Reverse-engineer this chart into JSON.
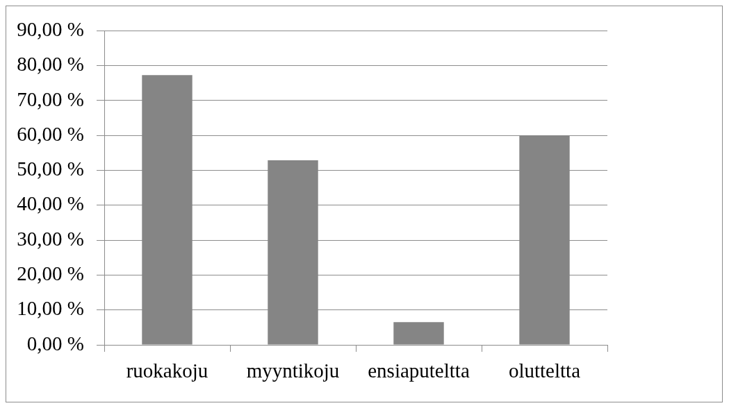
{
  "chart_data": {
    "type": "bar",
    "categories": [
      "ruokakoju",
      "myyntikoju",
      "ensiaputeltta",
      "olutteltta"
    ],
    "values": [
      77.3,
      52.9,
      6.5,
      60.0
    ],
    "color": "#858585",
    "ylim": [
      0,
      90
    ],
    "yticks": [
      {
        "value": 0,
        "label": "0,00 %"
      },
      {
        "value": 10,
        "label": "10,00 %"
      },
      {
        "value": 20,
        "label": "20,00 %"
      },
      {
        "value": 30,
        "label": "30,00 %"
      },
      {
        "value": 40,
        "label": "40,00 %"
      },
      {
        "value": 50,
        "label": "50,00 %"
      },
      {
        "value": 60,
        "label": "60,00 %"
      },
      {
        "value": 70,
        "label": "70,00 %"
      },
      {
        "value": 80,
        "label": "80,00 %"
      },
      {
        "value": 90,
        "label": "90,00 %"
      }
    ],
    "grid": "y",
    "legend": false
  }
}
